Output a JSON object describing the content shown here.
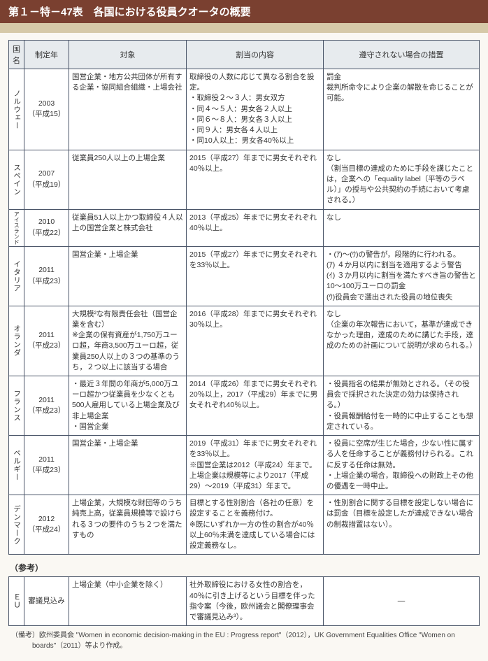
{
  "title": "第１－特－47表　各国における役員クオータの概要",
  "columns": [
    "国名",
    "制定年",
    "対象",
    "割当の内容",
    "遵守されない場合の措置"
  ],
  "rows": [
    {
      "country": "ノルウェー",
      "year": "2003\n（平成15）",
      "target": "国営企業・地方公共団体が所有する企業・協同組合組織・上場会社",
      "content": "取締役の人数に応じて異なる割合を設定。\n・取締役２～３人：男女双方\n・同４～５人：男女各２人以上\n・同６～８人：男女各３人以上\n・同９人：男女各４人以上\n・同10人以上：男女各40％以上",
      "measure": "罰金\n裁判所命令により企業の解散を命じることが可能。"
    },
    {
      "country": "スペイン",
      "year": "2007\n（平成19）",
      "target": "従業員250人以上の上場企業",
      "content": "2015（平成27）年までに男女それぞれ40％以上。",
      "measure": "なし\n（割当目標の達成のために手段を講じたことは，企業への「equality label（平等のラベル）」の授与や公共契約の手続において考慮される。）"
    },
    {
      "country": "アイスランド",
      "year": "2010\n（平成22）",
      "target": "従業員51人以上かつ取締役４人以上の国営企業と株式会社",
      "content": "2013（平成25）年までに男女それぞれ40％以上。",
      "measure": "なし",
      "smallCountry": true
    },
    {
      "country": "イタリア",
      "year": "2011\n（平成23）",
      "target": "国営企業・上場企業",
      "content": "2015（平成27）年までに男女それぞれを33％以上。",
      "measure": "・(ｱ)～(ｳ)の警告が，段階的に行われる。\n(ｱ) ４か月以内に割当を適用するよう警告\n(ｲ) ３か月以内に割当を満たすべき旨の警告と10～100万ユーロの罰金\n(ｳ)役員会で選出された役員の地位喪失"
    },
    {
      "country": "オランダ",
      "year": "2011\n（平成23）",
      "target": "大規模²な有限責任会社（国営企業を含む）\n※企業の保有資産が1,750万ユーロ超，年商3,500万ユーロ超，従業員250人以上の３つの基準のうち，２つ以上に該当する場合",
      "content": "2016（平成28）年までに男女それぞれ30％以上。",
      "measure": "なし\n（企業の年次報告において，基準が達成できなかった理由，達成のために講じた手段，達成のための計画について説明が求められる。）"
    },
    {
      "country": "フランス",
      "year": "2011\n（平成23）",
      "target": "・最近３年間の年商が5,000万ユーロ超かつ従業員を少なくとも500人雇用している上場企業及び非上場企業\n・国営企業",
      "content": "2014（平成26）年までに男女それぞれ20％以上，2017（平成29）年までに男女それぞれ40％以上。",
      "measure": "・役員指名の結果が無効とされる。（その役員会で採択された決定の効力は保持される。）\n・役員報酬給付を一時的に中止することも想定されている。"
    },
    {
      "country": "ベルギー",
      "year": "2011\n（平成23）",
      "target": "国営企業・上場企業",
      "content": "2019（平成31）年までに男女それぞれを33％以上。\n※国営企業は2012（平成24）年まで。上場企業は規模等により2017（平成29）～2019（平成31）年まで。",
      "measure": "・役員に空席が生じた場合，少ない性に属する人を任命することが義務付けられる。これに反する任命は無効。\n・上場企業の場合，取締役への財政上その他の優遇を一時中止。"
    },
    {
      "country": "デンマーク",
      "year": "2012\n（平成24）",
      "target": "上場企業，大規模な財団等のうち純売上高，従業員規模等で設けられる３つの要件のうち２つを満たすもの",
      "content": "目標とする性別割合（各社の任意）を設定することを義務付け。\n※既にいずれか一方の性の割合が40％以上60％未満を達成している場合には設定義務なし。",
      "measure": "・性別割合に関する目標を設定しない場合には罰金（目標を設定したが達成できない場合の制裁措置はない）。"
    }
  ],
  "ref": {
    "heading": "（参考）",
    "row": {
      "country": "ＥＵ",
      "year": "審議見込み",
      "target": "上場企業（中小企業を除く）",
      "content": "社外取締役における女性の割合を，40％に引き上げるという目標を伴った指令案（今後，欧州議会と閣僚理事会で審議見込み³）。",
      "measure": "—"
    }
  },
  "footnote": "（備考）欧州委員会 \"Women in economic decision-making in the EU : Progress report\"（2012），UK Government Equalities Office \"Women on boards\"（2011）等より作成。"
}
